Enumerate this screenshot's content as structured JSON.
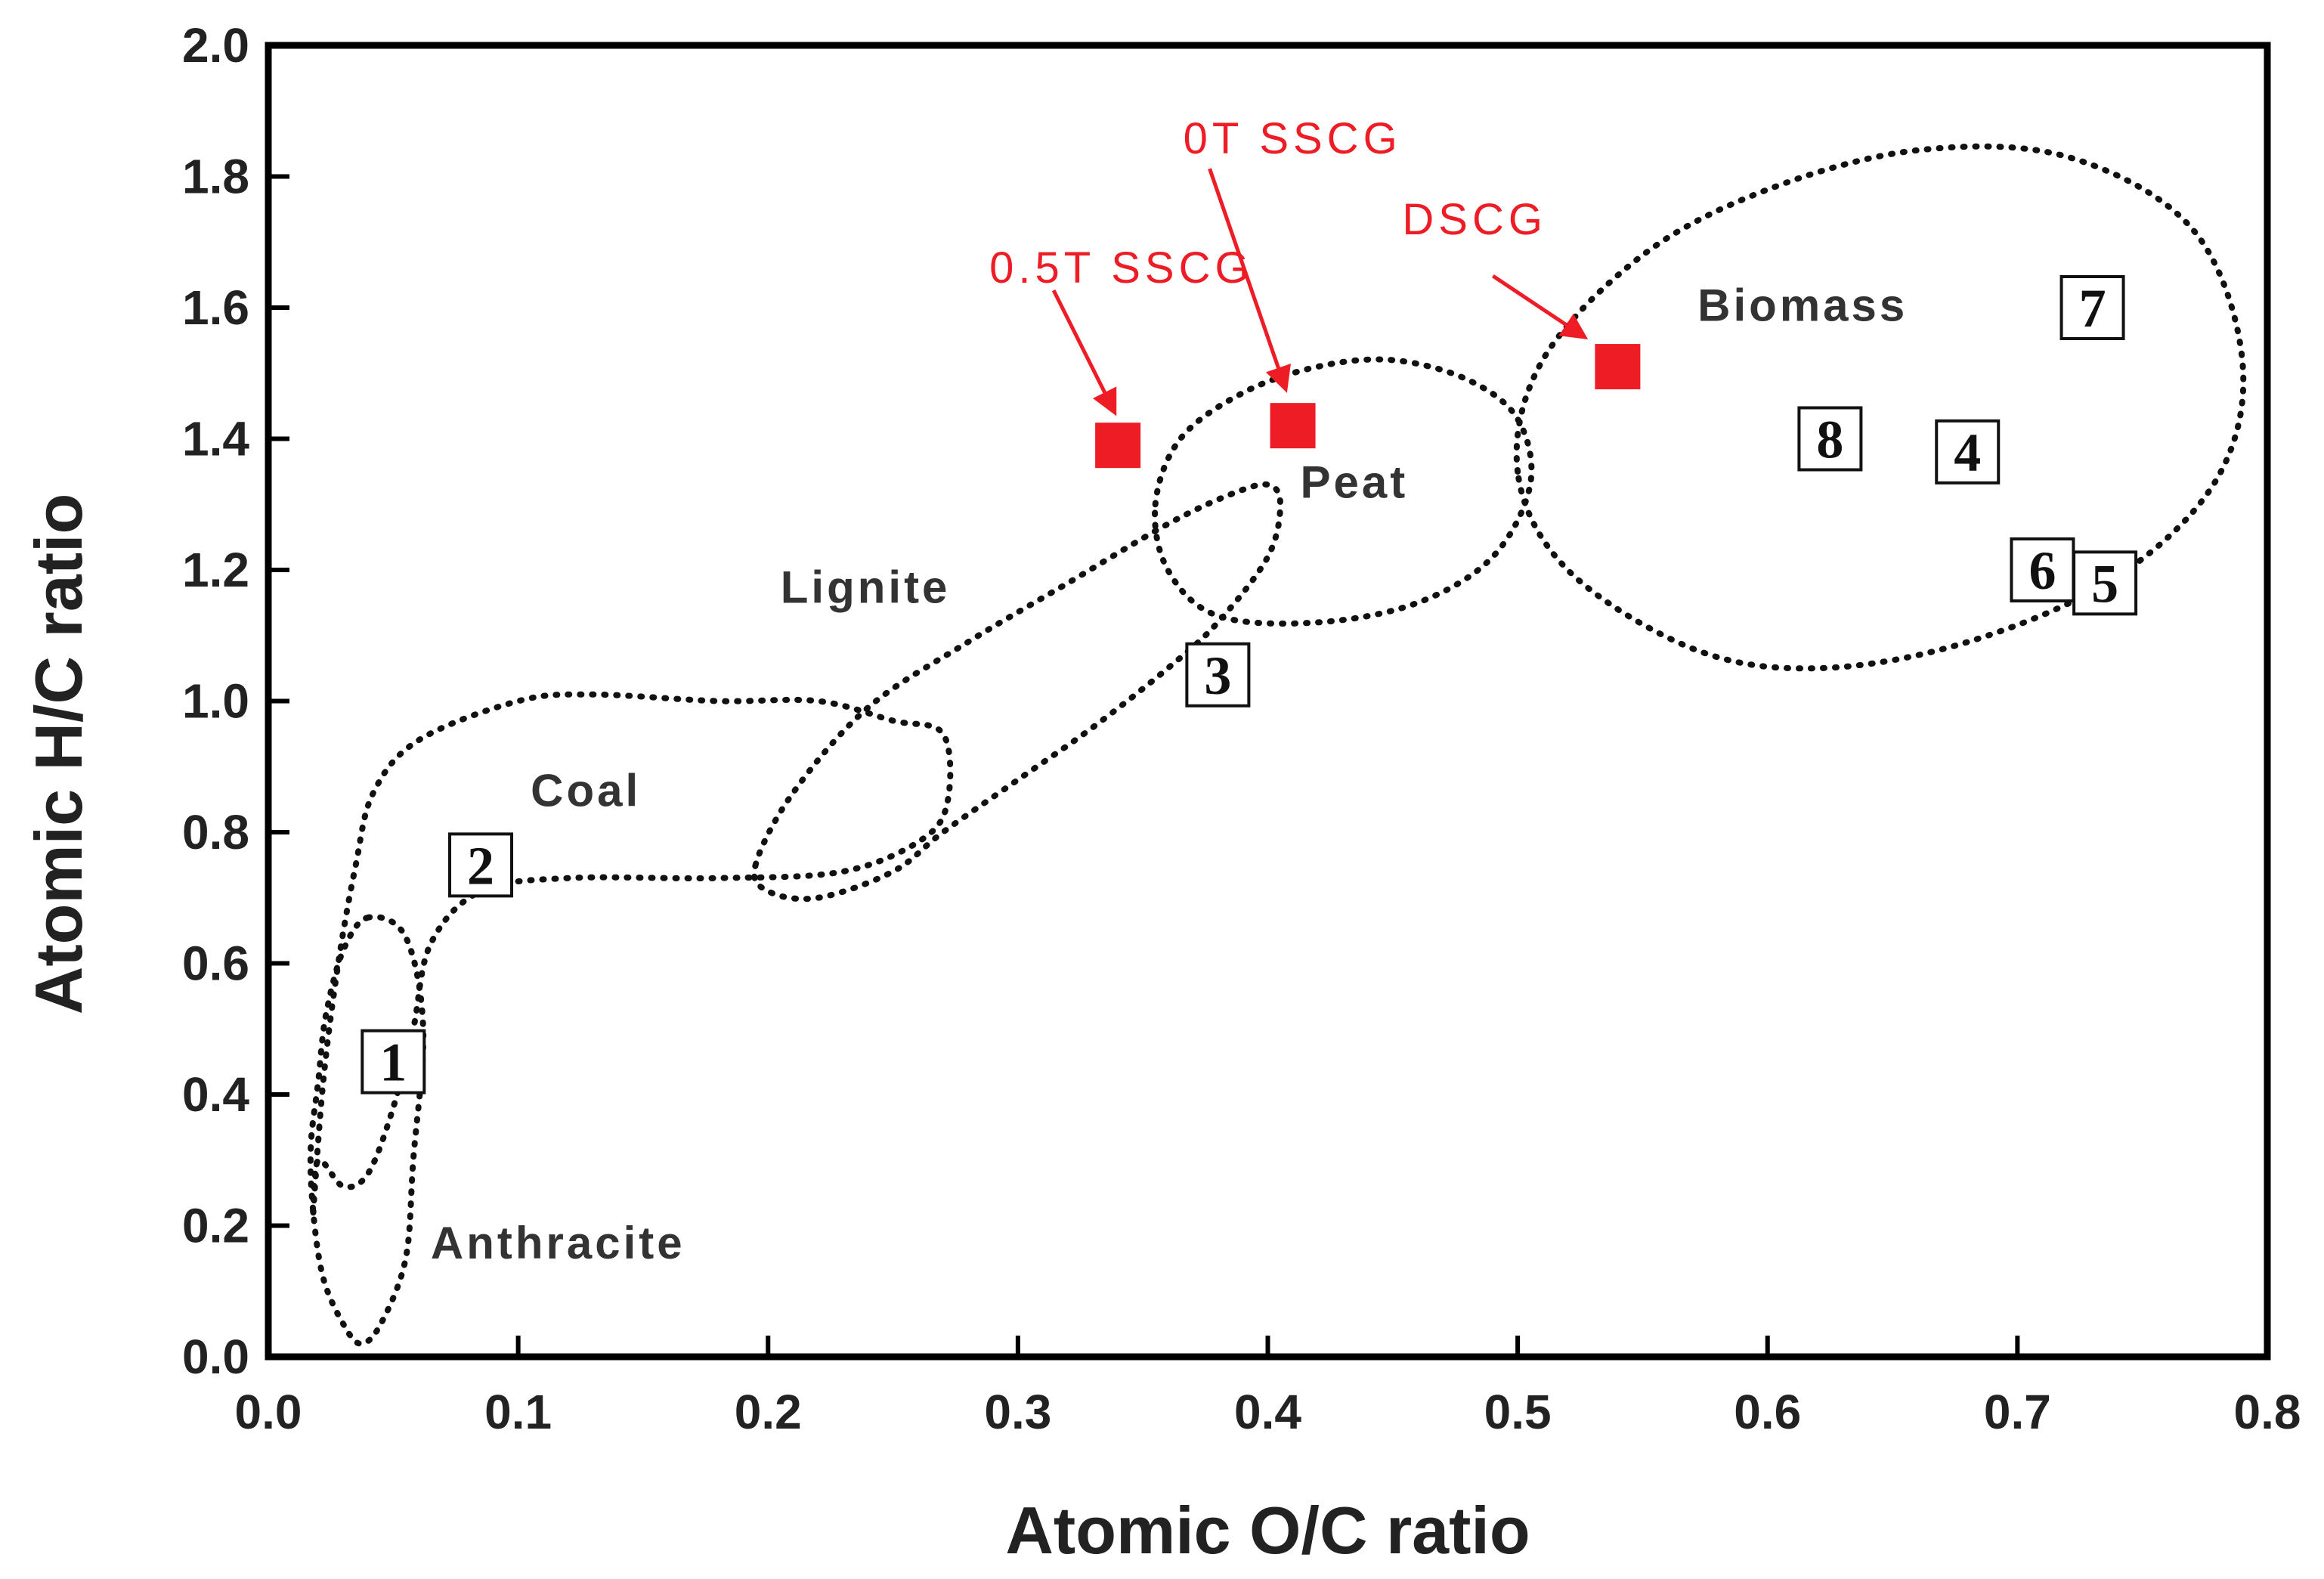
{
  "chart_data": {
    "type": "scatter",
    "title": "",
    "xlabel": "Atomic O/C ratio",
    "ylabel": "Atomic H/C ratio",
    "xlim": [
      0.0,
      0.8
    ],
    "ylim": [
      0.0,
      2.0
    ],
    "x_ticks": [
      "0.0",
      "0.1",
      "0.2",
      "0.3",
      "0.4",
      "0.5",
      "0.6",
      "0.7",
      "0.8"
    ],
    "y_ticks": [
      "0.0",
      "0.2",
      "0.4",
      "0.6",
      "0.8",
      "1.0",
      "1.2",
      "1.4",
      "1.6",
      "1.8",
      "2.0"
    ],
    "grid": false,
    "samples": [
      {
        "name": "0.5TSSCG",
        "label": "0.5T SSCG",
        "x": 0.34,
        "y": 1.39,
        "color": "#ee1c24"
      },
      {
        "name": "0TSSCG",
        "label": "0T SSCG",
        "x": 0.41,
        "y": 1.42,
        "color": "#ee1c24"
      },
      {
        "name": "DSCG",
        "label": "DSCG",
        "x": 0.54,
        "y": 1.51,
        "color": "#ee1c24"
      }
    ],
    "reference_points": [
      {
        "label": "1",
        "x": 0.05,
        "y": 0.45
      },
      {
        "label": "2",
        "x": 0.085,
        "y": 0.75
      },
      {
        "label": "3",
        "x": 0.38,
        "y": 1.04
      },
      {
        "label": "4",
        "x": 0.68,
        "y": 1.38
      },
      {
        "label": "5",
        "x": 0.735,
        "y": 1.18
      },
      {
        "label": "6",
        "x": 0.71,
        "y": 1.2
      },
      {
        "label": "7",
        "x": 0.73,
        "y": 1.6
      },
      {
        "label": "8",
        "x": 0.625,
        "y": 1.4
      }
    ],
    "regions": [
      {
        "name": "Anthracite",
        "label": "Anthracite",
        "label_at": [
          0.065,
          0.15
        ],
        "outline": [
          [
            0.04,
            0.67
          ],
          [
            0.055,
            0.64
          ],
          [
            0.062,
            0.5
          ],
          [
            0.058,
            0.3
          ],
          [
            0.055,
            0.15
          ],
          [
            0.045,
            0.05
          ],
          [
            0.037,
            0.02
          ],
          [
            0.03,
            0.05
          ],
          [
            0.022,
            0.12
          ],
          [
            0.018,
            0.22
          ],
          [
            0.017,
            0.32
          ],
          [
            0.02,
            0.42
          ],
          [
            0.023,
            0.52
          ],
          [
            0.03,
            0.62
          ]
        ]
      },
      {
        "name": "Coal",
        "label": "Coal",
        "label_at": [
          0.105,
          0.84
        ],
        "outline": [
          [
            0.018,
            0.22
          ],
          [
            0.022,
            0.42
          ],
          [
            0.028,
            0.6
          ],
          [
            0.035,
            0.75
          ],
          [
            0.042,
            0.86
          ],
          [
            0.06,
            0.94
          ],
          [
            0.1,
            1.0
          ],
          [
            0.13,
            1.01
          ],
          [
            0.18,
            1.0
          ],
          [
            0.22,
            1.0
          ],
          [
            0.25,
            0.97
          ],
          [
            0.27,
            0.95
          ],
          [
            0.272,
            0.85
          ],
          [
            0.262,
            0.79
          ],
          [
            0.23,
            0.74
          ],
          [
            0.18,
            0.73
          ],
          [
            0.12,
            0.73
          ],
          [
            0.085,
            0.71
          ],
          [
            0.065,
            0.63
          ],
          [
            0.058,
            0.5
          ],
          [
            0.05,
            0.38
          ],
          [
            0.04,
            0.28
          ],
          [
            0.03,
            0.26
          ],
          [
            0.02,
            0.3
          ]
        ]
      },
      {
        "name": "Lignite",
        "label": "Lignite",
        "label_at": [
          0.205,
          1.15
        ],
        "outline": [
          [
            0.195,
            0.75
          ],
          [
            0.21,
            0.86
          ],
          [
            0.24,
            0.99
          ],
          [
            0.28,
            1.09
          ],
          [
            0.32,
            1.18
          ],
          [
            0.36,
            1.27
          ],
          [
            0.385,
            1.315
          ],
          [
            0.4,
            1.33
          ],
          [
            0.405,
            1.3
          ],
          [
            0.4,
            1.22
          ],
          [
            0.38,
            1.12
          ],
          [
            0.36,
            1.05
          ],
          [
            0.33,
            0.96
          ],
          [
            0.3,
            0.88
          ],
          [
            0.27,
            0.8
          ],
          [
            0.25,
            0.74
          ],
          [
            0.22,
            0.7
          ],
          [
            0.2,
            0.71
          ]
        ]
      },
      {
        "name": "Peat",
        "label": "Peat",
        "label_at": [
          0.413,
          1.31
        ],
        "outline": [
          [
            0.355,
            1.3
          ],
          [
            0.365,
            1.4
          ],
          [
            0.39,
            1.47
          ],
          [
            0.42,
            1.51
          ],
          [
            0.45,
            1.52
          ],
          [
            0.48,
            1.49
          ],
          [
            0.5,
            1.43
          ],
          [
            0.505,
            1.33
          ],
          [
            0.49,
            1.22
          ],
          [
            0.46,
            1.15
          ],
          [
            0.42,
            1.12
          ],
          [
            0.38,
            1.13
          ],
          [
            0.36,
            1.2
          ]
        ]
      },
      {
        "name": "Biomass",
        "label": "Biomass",
        "label_at": [
          0.572,
          1.58
        ],
        "outline": [
          [
            0.5,
            1.35
          ],
          [
            0.51,
            1.52
          ],
          [
            0.55,
            1.68
          ],
          [
            0.6,
            1.78
          ],
          [
            0.66,
            1.84
          ],
          [
            0.72,
            1.83
          ],
          [
            0.77,
            1.72
          ],
          [
            0.79,
            1.52
          ],
          [
            0.78,
            1.34
          ],
          [
            0.74,
            1.19
          ],
          [
            0.68,
            1.09
          ],
          [
            0.62,
            1.05
          ],
          [
            0.57,
            1.08
          ],
          [
            0.52,
            1.2
          ]
        ]
      }
    ]
  }
}
